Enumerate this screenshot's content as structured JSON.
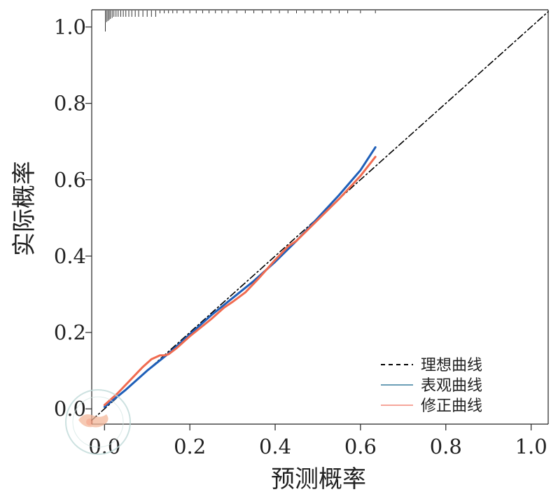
{
  "chart_data": {
    "type": "line",
    "title": "",
    "xlabel": "预测概率",
    "ylabel": "实际概率",
    "xlim": [
      -0.03,
      1.04
    ],
    "ylim": [
      -0.04,
      1.045
    ],
    "xticks": [
      0.0,
      0.2,
      0.4,
      0.6,
      0.8,
      1.0
    ],
    "xtick_labels": [
      "0.0",
      "0.2",
      "0.4",
      "0.6",
      "0.8",
      "1.0"
    ],
    "yticks": [
      0.0,
      0.2,
      0.4,
      0.6,
      0.8,
      1.0
    ],
    "ytick_labels": [
      "0.0",
      "0.2",
      "0.4",
      "0.6",
      "0.8",
      "1.0"
    ],
    "grid": false,
    "legend_position": "bottom-right",
    "series": [
      {
        "name": "理想曲线",
        "style": "dashed",
        "color": "#000000",
        "x": [
          -0.03,
          1.04
        ],
        "y": [
          -0.03,
          1.04
        ]
      },
      {
        "name": "表观曲线",
        "style": "solid",
        "color": "#1f5fb8",
        "x": [
          0.0,
          0.05,
          0.1,
          0.15,
          0.2,
          0.25,
          0.3,
          0.35,
          0.4,
          0.45,
          0.5,
          0.55,
          0.6,
          0.635
        ],
        "y": [
          0.005,
          0.05,
          0.1,
          0.145,
          0.195,
          0.245,
          0.29,
          0.335,
          0.385,
          0.44,
          0.5,
          0.56,
          0.625,
          0.685
        ]
      },
      {
        "name": "修正曲线",
        "style": "solid",
        "color": "#f06b50",
        "x": [
          0.0,
          0.03,
          0.06,
          0.09,
          0.11,
          0.13,
          0.14,
          0.15,
          0.17,
          0.2,
          0.25,
          0.28,
          0.3,
          0.33,
          0.36,
          0.4,
          0.43,
          0.45,
          0.5,
          0.55,
          0.6,
          0.635
        ],
        "y": [
          0.01,
          0.04,
          0.075,
          0.11,
          0.13,
          0.14,
          0.14,
          0.143,
          0.16,
          0.19,
          0.235,
          0.265,
          0.28,
          0.305,
          0.34,
          0.39,
          0.425,
          0.44,
          0.495,
          0.55,
          0.61,
          0.66
        ]
      }
    ],
    "rug_top": {
      "y": 1.0,
      "x": [
        0.002,
        0.005,
        0.008,
        0.011,
        0.014,
        0.018,
        0.022,
        0.027,
        0.032,
        0.038,
        0.044,
        0.05,
        0.057,
        0.064,
        0.072,
        0.08,
        0.09,
        0.1,
        0.11,
        0.12,
        0.13,
        0.14,
        0.15,
        0.16,
        0.17,
        0.185,
        0.2,
        0.215,
        0.23,
        0.245,
        0.26,
        0.275,
        0.29,
        0.31,
        0.33,
        0.35,
        0.37,
        0.39,
        0.41,
        0.43,
        0.45,
        0.47,
        0.49,
        0.51,
        0.53,
        0.55,
        0.57,
        0.6,
        0.635
      ]
    }
  },
  "legend": {
    "items": [
      {
        "label": "理想曲线",
        "color": "#000000",
        "dash": "6 5"
      },
      {
        "label": "表观曲线",
        "color": "#3a7f9e",
        "dash": ""
      },
      {
        "label": "修正曲线",
        "color": "#f4897a",
        "dash": ""
      }
    ]
  }
}
